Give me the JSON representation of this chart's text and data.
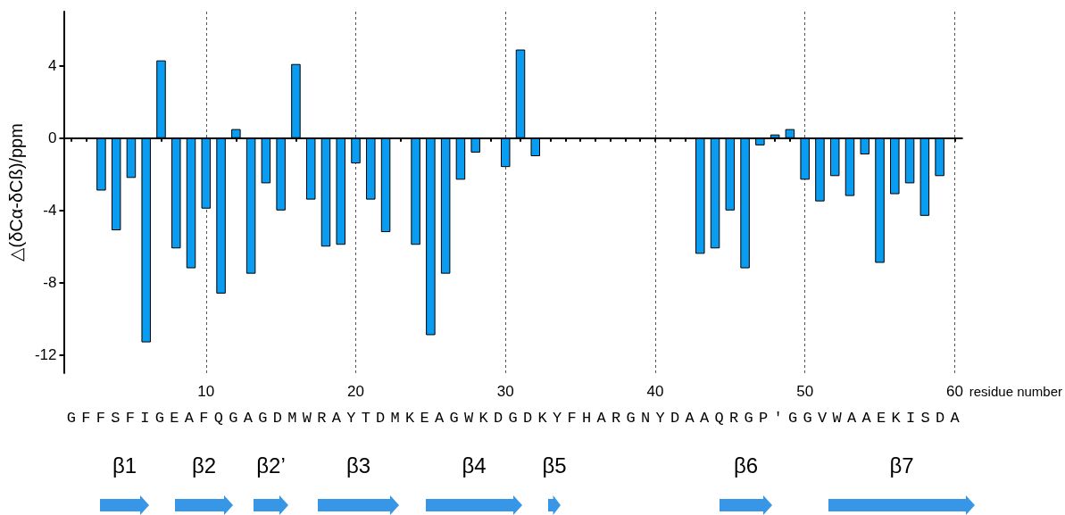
{
  "chart_data": {
    "type": "bar",
    "ylabel": "△(δCα-δCß)/ppm",
    "xlabel": "residue number",
    "x": [
      3,
      4,
      5,
      6,
      7,
      8,
      9,
      10,
      11,
      12,
      13,
      14,
      15,
      16,
      17,
      18,
      19,
      20,
      21,
      22,
      24,
      25,
      26,
      27,
      28,
      30,
      31,
      32,
      43,
      44,
      45,
      46,
      47,
      48,
      49,
      50,
      51,
      52,
      53,
      54,
      55,
      56,
      57,
      58,
      59
    ],
    "values": [
      -2.9,
      -5.1,
      -2.2,
      -11.3,
      4.3,
      -6.1,
      -7.2,
      -3.9,
      -8.6,
      0.5,
      -7.5,
      -2.5,
      -4.0,
      4.1,
      -3.4,
      -6.0,
      -5.9,
      -1.4,
      -3.4,
      -5.2,
      -5.9,
      -10.9,
      -7.5,
      -2.3,
      -0.8,
      -1.6,
      4.9,
      -1.0,
      -6.4,
      -6.1,
      -4.0,
      -7.2,
      -0.4,
      0.2,
      0.5,
      -2.3,
      -3.5,
      -2.1,
      -3.2,
      -0.9,
      -6.9,
      -3.1,
      -2.5,
      -4.3,
      -2.1
    ],
    "color": "#0a9cf0",
    "xlim": [
      0.5,
      60.5
    ],
    "xticks": [
      {
        "value": 1,
        "label": null
      },
      {
        "value": 2,
        "label": null
      },
      {
        "value": 3,
        "label": null
      },
      {
        "value": 4,
        "label": null
      },
      {
        "value": 5,
        "label": null
      },
      {
        "value": 6,
        "label": null
      },
      {
        "value": 7,
        "label": null
      },
      {
        "value": 8,
        "label": null
      },
      {
        "value": 9,
        "label": null
      },
      10,
      {
        "value": 11,
        "label": null
      },
      {
        "value": 12,
        "label": null
      },
      {
        "value": 13,
        "label": null
      },
      {
        "value": 14,
        "label": null
      },
      {
        "value": 15,
        "label": null
      },
      {
        "value": 16,
        "label": null
      },
      {
        "value": 17,
        "label": null
      },
      {
        "value": 18,
        "label": null
      },
      {
        "value": 19,
        "label": null
      },
      20,
      {
        "value": 21,
        "label": null
      },
      {
        "value": 22,
        "label": null
      },
      {
        "value": 23,
        "label": null
      },
      {
        "value": 24,
        "label": null
      },
      {
        "value": 25,
        "label": null
      },
      {
        "value": 26,
        "label": null
      },
      {
        "value": 27,
        "label": null
      },
      {
        "value": 28,
        "label": null
      },
      {
        "value": 29,
        "label": null
      },
      30,
      {
        "value": 31,
        "label": null
      },
      {
        "value": 32,
        "label": null
      },
      {
        "value": 33,
        "label": null
      },
      {
        "value": 34,
        "label": null
      },
      {
        "value": 35,
        "label": null
      },
      {
        "value": 36,
        "label": null
      },
      {
        "value": 37,
        "label": null
      },
      {
        "value": 38,
        "label": null
      },
      {
        "value": 39,
        "label": null
      },
      40,
      {
        "value": 41,
        "label": null
      },
      {
        "value": 42,
        "label": null
      },
      {
        "value": 43,
        "label": null
      },
      {
        "value": 44,
        "label": null
      },
      {
        "value": 45,
        "label": null
      },
      {
        "value": 46,
        "label": null
      },
      {
        "value": 47,
        "label": null
      },
      {
        "value": 48,
        "label": null
      },
      {
        "value": 49,
        "label": null
      },
      50,
      {
        "value": 51,
        "label": null
      },
      {
        "value": 52,
        "label": null
      },
      {
        "value": 53,
        "label": null
      },
      {
        "value": 54,
        "label": null
      },
      {
        "value": 55,
        "label": null
      },
      {
        "value": 56,
        "label": null
      },
      {
        "value": 57,
        "label": null
      },
      {
        "value": 58,
        "label": null
      },
      {
        "value": 59,
        "label": null
      },
      60
    ],
    "ylim": [
      -13,
      7
    ],
    "yticks": [
      -12,
      -8,
      -4,
      0,
      4
    ],
    "grid": "x",
    "annotations": [
      "GFFSFIGEAFQGAGDMWRAYTDMKEAGWKDGDKYFHARGNYDAAQRGP'GGVWAAEKISDA",
      "β1",
      "β2",
      "β2’",
      "β3",
      "β4",
      "β5",
      "β6",
      "β7"
    ]
  }
}
